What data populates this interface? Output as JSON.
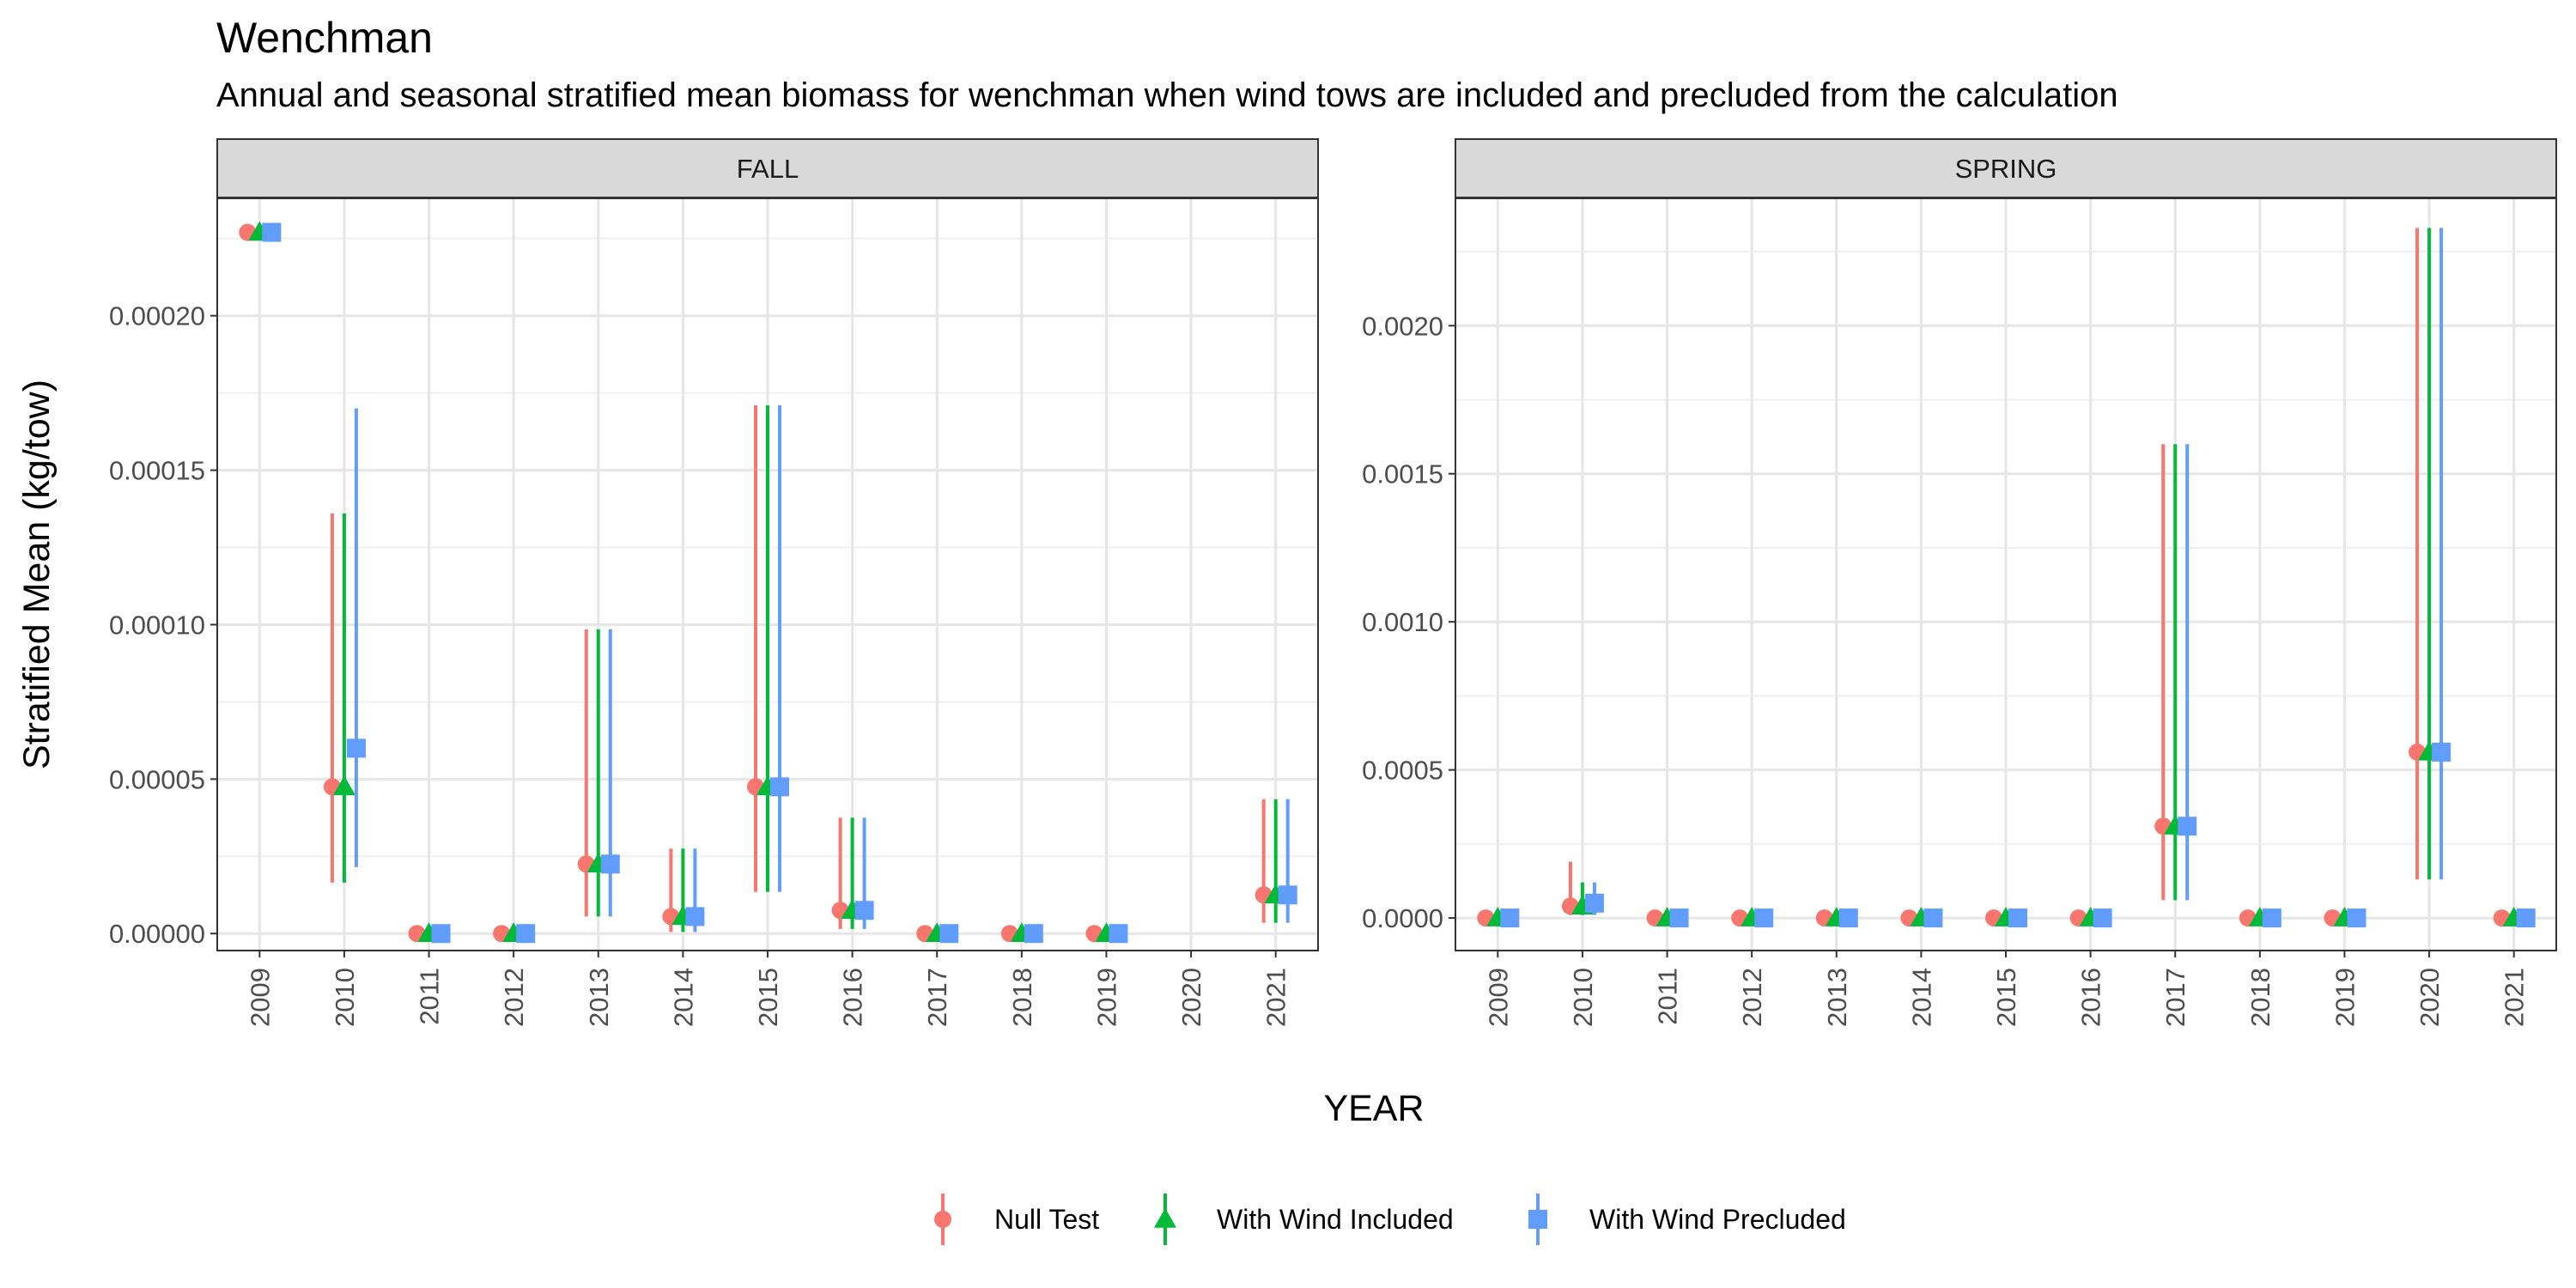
{
  "title": "Wenchman",
  "subtitle": "Annual and seasonal stratified mean biomass for wenchman when wind tows are included and precluded from the calculation",
  "chart_data": {
    "type": "scatter",
    "style": "point-range (mean with error bars), faceted by season",
    "xlabel": "YEAR",
    "ylabel": "Stratified Mean (kg/tow)",
    "categories": [
      "2009",
      "2010",
      "2011",
      "2012",
      "2013",
      "2014",
      "2015",
      "2016",
      "2017",
      "2018",
      "2019",
      "2020",
      "2021"
    ],
    "legend": {
      "position": "bottom",
      "entries": [
        {
          "name": "Null Test",
          "color": "#F8766D",
          "shape": "circle"
        },
        {
          "name": "With Wind Included",
          "color": "#00BA38",
          "shape": "triangle"
        },
        {
          "name": "With Wind Precluded",
          "color": "#619CFF",
          "shape": "square"
        }
      ]
    },
    "grid": true,
    "facets": [
      {
        "label": "FALL",
        "ylim": [
          -5.5e-06,
          0.000238
        ],
        "yticks": [
          0,
          5e-05,
          0.0001,
          0.00015,
          0.0002
        ],
        "ytick_labels": [
          "0.00000",
          "0.00005",
          "0.00010",
          "0.00015",
          "0.00020"
        ],
        "series": [
          {
            "name": "Null Test",
            "values": [
              0.000227,
              4.75e-05,
              0,
              0,
              2.25e-05,
              5.5e-06,
              4.75e-05,
              7.5e-06,
              0,
              0,
              0,
              null,
              1.25e-05
            ],
            "lower": [
              0.000227,
              1.65e-05,
              0,
              0,
              5.5e-06,
              5e-07,
              1.35e-05,
              1.5e-06,
              0,
              0,
              0,
              null,
              3.5e-06
            ],
            "upper": [
              0.000227,
              0.000136,
              0,
              0,
              9.85e-05,
              2.75e-05,
              0.000171,
              3.75e-05,
              0,
              0,
              0,
              null,
              4.35e-05
            ]
          },
          {
            "name": "With Wind Included",
            "values": [
              0.000227,
              4.75e-05,
              0,
              0,
              2.25e-05,
              5.5e-06,
              4.75e-05,
              7.5e-06,
              0,
              0,
              0,
              null,
              1.25e-05
            ],
            "lower": [
              0.000227,
              1.65e-05,
              0,
              0,
              5.5e-06,
              5e-07,
              1.35e-05,
              1.5e-06,
              0,
              0,
              0,
              null,
              3.5e-06
            ],
            "upper": [
              0.000227,
              0.000136,
              0,
              0,
              9.85e-05,
              2.75e-05,
              0.000171,
              3.75e-05,
              0,
              0,
              0,
              null,
              4.35e-05
            ]
          },
          {
            "name": "With Wind Precluded",
            "values": [
              0.000227,
              6e-05,
              0,
              0,
              2.25e-05,
              5.5e-06,
              4.75e-05,
              7.5e-06,
              0,
              0,
              0,
              null,
              1.25e-05
            ],
            "lower": [
              0.000227,
              2.15e-05,
              0,
              0,
              5.5e-06,
              5e-07,
              1.35e-05,
              1.5e-06,
              0,
              0,
              0,
              null,
              3.5e-06
            ],
            "upper": [
              0.000227,
              0.00017,
              0,
              0,
              9.85e-05,
              2.75e-05,
              0.000171,
              3.75e-05,
              0,
              0,
              0,
              null,
              4.35e-05
            ]
          }
        ]
      },
      {
        "label": "SPRING",
        "ylim": [
          -0.00011,
          0.00243
        ],
        "yticks": [
          0,
          0.0005,
          0.001,
          0.0015,
          0.002
        ],
        "ytick_labels": [
          "0.0000",
          "0.0005",
          "0.0010",
          "0.0015",
          "0.0020"
        ],
        "series": [
          {
            "name": "Null Test",
            "values": [
              0,
              4e-05,
              0,
              0,
              0,
              0,
              0,
              0,
              0.00031,
              0,
              0,
              0.00056,
              0
            ],
            "lower": [
              0,
              1e-05,
              0,
              0,
              0,
              0,
              0,
              0,
              6e-05,
              0,
              0,
              0.00013,
              0
            ],
            "upper": [
              0,
              0.00019,
              0,
              0,
              0,
              0,
              0,
              0,
              0.0016,
              0,
              0,
              0.00233,
              0
            ]
          },
          {
            "name": "With Wind Included",
            "values": [
              0,
              4e-05,
              0,
              0,
              0,
              0,
              0,
              0,
              0.00031,
              0,
              0,
              0.00056,
              0
            ],
            "lower": [
              0,
              1e-05,
              0,
              0,
              0,
              0,
              0,
              0,
              6e-05,
              0,
              0,
              0.00013,
              0
            ],
            "upper": [
              0,
              0.00012,
              0,
              0,
              0,
              0,
              0,
              0,
              0.0016,
              0,
              0,
              0.00233,
              0
            ]
          },
          {
            "name": "With Wind Precluded",
            "values": [
              0,
              5e-05,
              0,
              0,
              0,
              0,
              0,
              0,
              0.00031,
              0,
              0,
              0.00056,
              0
            ],
            "lower": [
              0,
              1e-05,
              0,
              0,
              0,
              0,
              0,
              0,
              6e-05,
              0,
              0,
              0.00013,
              0
            ],
            "upper": [
              0,
              0.00012,
              0,
              0,
              0,
              0,
              0,
              0,
              0.0016,
              0,
              0,
              0.00233,
              0
            ]
          }
        ]
      }
    ]
  }
}
